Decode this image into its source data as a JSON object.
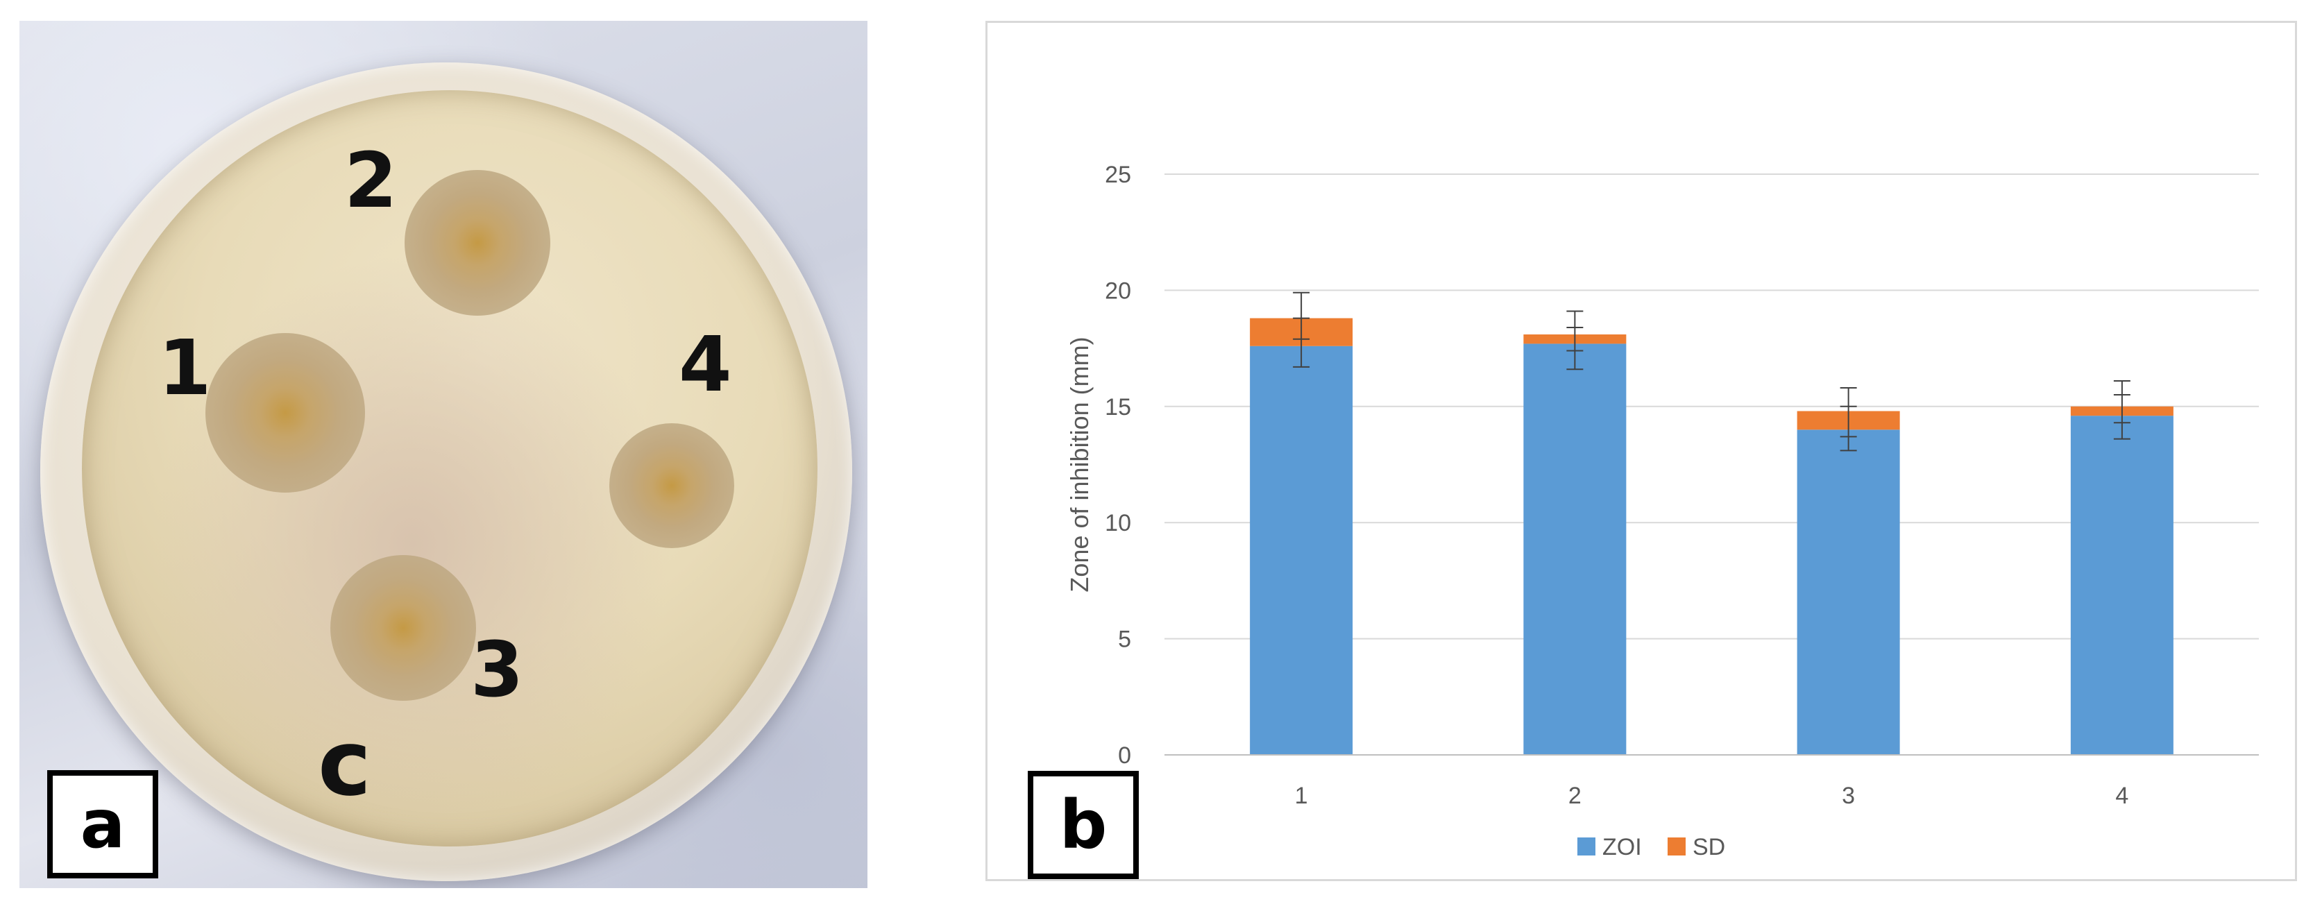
{
  "panel_a": {
    "label": "a",
    "plate_markings": [
      "1",
      "2",
      "3",
      "4",
      "c"
    ]
  },
  "panel_b": {
    "label": "b"
  },
  "colors": {
    "zoi": "#5B9BD5",
    "sd": "#ED7D31",
    "gridline": "#D9D9D9",
    "axis_text": "#595959"
  },
  "chart_data": {
    "type": "bar",
    "stacked": true,
    "categories": [
      "1",
      "2",
      "3",
      "4"
    ],
    "series": [
      {
        "name": "ZOI",
        "values": [
          17.6,
          17.7,
          14.0,
          14.6
        ]
      },
      {
        "name": "SD",
        "values": [
          1.2,
          0.4,
          0.8,
          0.4
        ]
      }
    ],
    "error_bars": [
      {
        "center": 18.3,
        "low": 16.7,
        "high": 19.9,
        "inner_low": 17.9,
        "inner_high": 18.8
      },
      {
        "center": 17.9,
        "low": 16.6,
        "high": 19.1,
        "inner_low": 17.4,
        "inner_high": 18.4
      },
      {
        "center": 14.5,
        "low": 13.1,
        "high": 15.8,
        "inner_low": 13.7,
        "inner_high": 15.0
      },
      {
        "center": 14.9,
        "low": 13.6,
        "high": 16.1,
        "inner_low": 14.3,
        "inner_high": 15.5
      }
    ],
    "ylabel": "Zone of inhibition (mm)",
    "xlabel": "",
    "ylim": [
      0,
      25
    ],
    "yticks": [
      "0",
      "5",
      "10",
      "15",
      "20",
      "25"
    ],
    "grid": true,
    "legend": "bottom"
  }
}
